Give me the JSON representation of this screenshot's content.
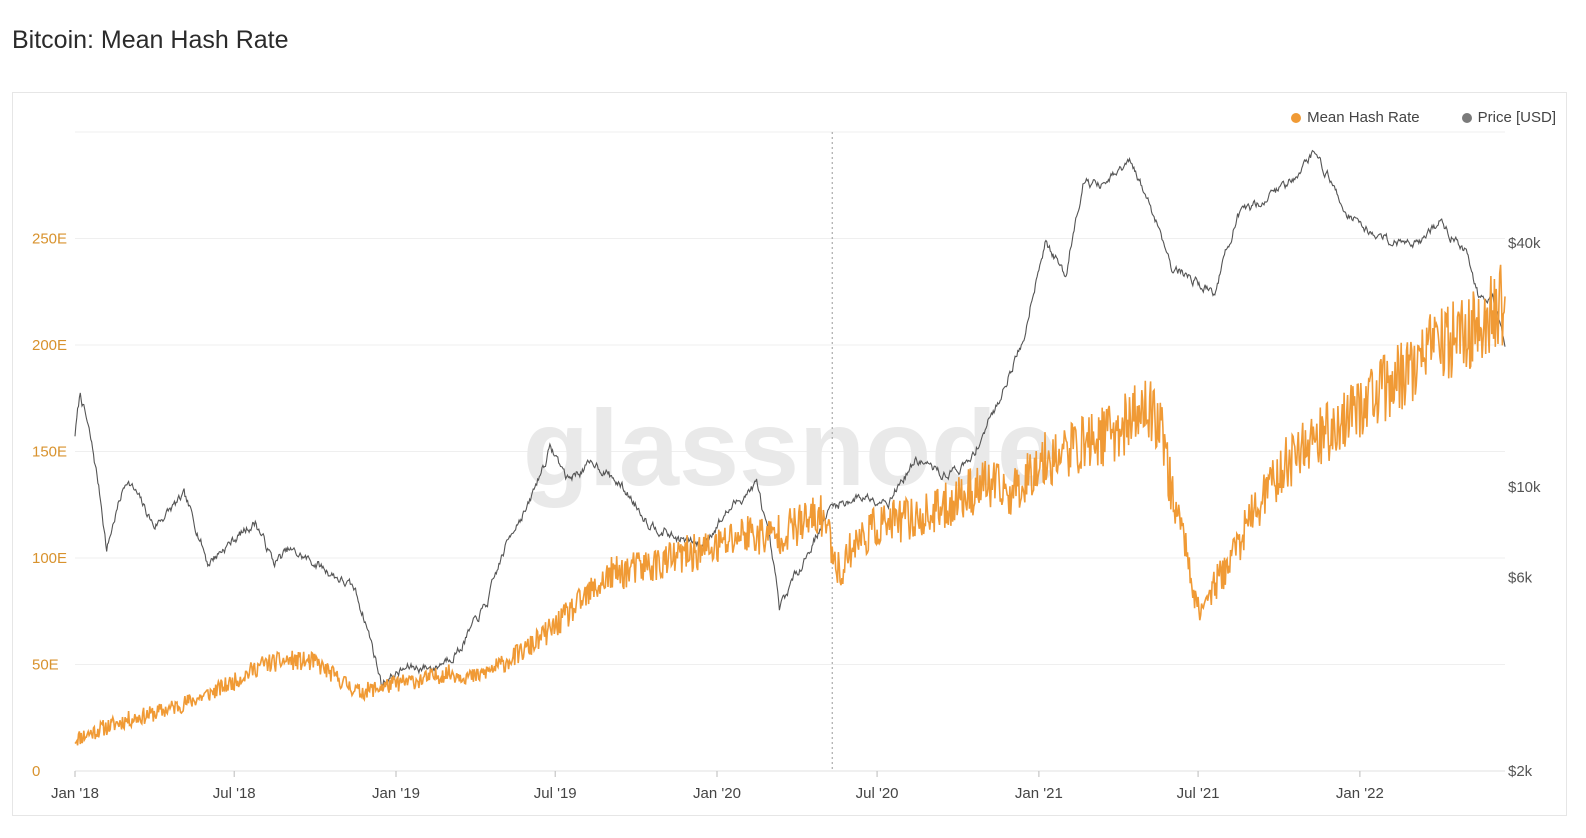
{
  "title": "Bitcoin: Mean Hash Rate",
  "watermark": "glassnode",
  "colors": {
    "hash_rate": "#f09a35",
    "price": "#555555",
    "grid": "#efefef",
    "left_tick": "#d8922d",
    "right_tick": "#555555"
  },
  "legend": [
    {
      "label": "Mean Hash Rate",
      "color": "#f09a35"
    },
    {
      "label": "Price [USD]",
      "color": "#7a7a7a"
    }
  ],
  "chart_data": {
    "type": "line",
    "title": "Bitcoin: Mean Hash Rate",
    "x_range": [
      "2018-01-01",
      "2022-06-15"
    ],
    "x_ticks": [
      "Jan '18",
      "Jul '18",
      "Jan '19",
      "Jul '19",
      "Jan '20",
      "Jul '20",
      "Jan '21",
      "Jul '21",
      "Jan '22"
    ],
    "y_left": {
      "unit": "E",
      "ticks": [
        "0",
        "50E",
        "100E",
        "150E",
        "200E",
        "250E"
      ],
      "range": [
        0,
        300
      ]
    },
    "y_right": {
      "scale": "log",
      "ticks": [
        "$2k",
        "$6k",
        "$10k",
        "$40k"
      ],
      "range": [
        2000,
        75000
      ]
    },
    "marker_date": "2020-05-11",
    "series": [
      {
        "name": "Mean Hash Rate",
        "axis": "left",
        "dates": [
          "2018-01-01",
          "2018-02-01",
          "2018-03-01",
          "2018-04-01",
          "2018-05-01",
          "2018-06-01",
          "2018-07-01",
          "2018-08-01",
          "2018-09-01",
          "2018-10-01",
          "2018-11-01",
          "2018-11-20",
          "2018-12-01",
          "2019-01-01",
          "2019-02-01",
          "2019-03-01",
          "2019-04-01",
          "2019-05-01",
          "2019-06-01",
          "2019-07-01",
          "2019-08-01",
          "2019-09-01",
          "2019-10-01",
          "2019-11-01",
          "2019-12-01",
          "2020-01-01",
          "2020-02-01",
          "2020-03-01",
          "2020-04-01",
          "2020-05-01",
          "2020-05-20",
          "2020-06-01",
          "2020-07-01",
          "2020-08-01",
          "2020-09-01",
          "2020-10-01",
          "2020-11-01",
          "2020-12-01",
          "2021-01-01",
          "2021-02-01",
          "2021-03-01",
          "2021-04-01",
          "2021-05-01",
          "2021-05-20",
          "2021-06-01",
          "2021-06-15",
          "2021-07-01",
          "2021-08-01",
          "2021-09-01",
          "2021-10-01",
          "2021-11-01",
          "2021-12-01",
          "2022-01-01",
          "2022-02-01",
          "2022-03-01",
          "2022-04-01",
          "2022-05-01",
          "2022-06-01",
          "2022-06-15"
        ],
        "values": [
          15,
          20,
          24,
          27,
          31,
          36,
          42,
          50,
          52,
          51,
          42,
          37,
          38,
          41,
          43,
          46,
          44,
          50,
          58,
          68,
          80,
          92,
          95,
          98,
          102,
          105,
          112,
          110,
          115,
          120,
          92,
          105,
          115,
          118,
          120,
          128,
          135,
          130,
          145,
          150,
          155,
          160,
          170,
          165,
          130,
          110,
          75,
          95,
          120,
          140,
          155,
          160,
          172,
          180,
          190,
          200,
          205,
          215,
          220
        ],
        "noise": 12
      },
      {
        "name": "Price [USD]",
        "axis": "right",
        "dates": [
          "2018-01-01",
          "2018-01-07",
          "2018-02-06",
          "2018-03-01",
          "2018-04-01",
          "2018-05-05",
          "2018-06-01",
          "2018-07-25",
          "2018-08-15",
          "2018-09-01",
          "2018-10-01",
          "2018-11-15",
          "2018-12-15",
          "2019-01-15",
          "2019-02-15",
          "2019-03-15",
          "2019-04-15",
          "2019-05-15",
          "2019-06-01",
          "2019-06-26",
          "2019-07-15",
          "2019-08-15",
          "2019-09-15",
          "2019-10-15",
          "2019-11-15",
          "2019-12-15",
          "2020-01-15",
          "2020-02-15",
          "2020-03-12",
          "2020-04-15",
          "2020-05-11",
          "2020-06-15",
          "2020-07-15",
          "2020-08-15",
          "2020-09-15",
          "2020-10-15",
          "2020-11-15",
          "2020-12-15",
          "2021-01-08",
          "2021-02-01",
          "2021-02-21",
          "2021-03-15",
          "2021-04-14",
          "2021-05-15",
          "2021-06-01",
          "2021-07-20",
          "2021-08-15",
          "2021-09-07",
          "2021-10-15",
          "2021-11-10",
          "2021-12-15",
          "2022-01-15",
          "2022-02-15",
          "2022-03-15",
          "2022-04-01",
          "2022-05-01",
          "2022-05-15",
          "2022-06-01",
          "2022-06-15"
        ],
        "values": [
          13500,
          17000,
          7000,
          10500,
          8000,
          9500,
          6500,
          8200,
          6500,
          7000,
          6500,
          5600,
          3300,
          3600,
          3600,
          4000,
          5200,
          8000,
          9000,
          12500,
          10500,
          11500,
          10000,
          8200,
          7500,
          7200,
          8800,
          10200,
          5000,
          7000,
          9000,
          9500,
          9300,
          11700,
          10700,
          11500,
          16000,
          23000,
          40000,
          33000,
          57000,
          55000,
          63000,
          45000,
          35000,
          30000,
          46000,
          50000,
          57000,
          67000,
          48000,
          42000,
          40000,
          41000,
          45000,
          38000,
          30000,
          29500,
          22000
        ],
        "noise": 0.035
      }
    ]
  }
}
